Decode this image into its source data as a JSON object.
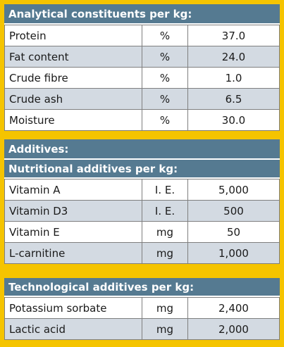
{
  "analytical": {
    "title": "Analytical constituents per kg:",
    "rows": [
      {
        "name": "Protein",
        "unit": "%",
        "value": "37.0"
      },
      {
        "name": "Fat content",
        "unit": "%",
        "value": "24.0"
      },
      {
        "name": "Crude fibre",
        "unit": "%",
        "value": "1.0"
      },
      {
        "name": "Crude ash",
        "unit": "%",
        "value": "6.5"
      },
      {
        "name": "Moisture",
        "unit": "%",
        "value": "30.0"
      }
    ]
  },
  "additives": {
    "title": "Additives:",
    "nutritional_title": "Nutritional additives per kg:",
    "nutritional_rows": [
      {
        "name": "Vitamin A",
        "unit": "I. E.",
        "value": "5,000"
      },
      {
        "name": "Vitamin D3",
        "unit": "I. E.",
        "value": "500"
      },
      {
        "name": "Vitamin E",
        "unit": "mg",
        "value": "50"
      },
      {
        "name": "L-carnitine",
        "unit": "mg",
        "value": "1,000"
      }
    ]
  },
  "technological": {
    "title": "Technological additives per kg:",
    "rows": [
      {
        "name": "Potassium sorbate",
        "unit": "mg",
        "value": "2,400"
      },
      {
        "name": "Lactic acid",
        "unit": "mg",
        "value": "2,000"
      }
    ]
  },
  "colors": {
    "header_bg": "#557a91",
    "row_alt_bg": "#d3dae2",
    "row_bg": "#ffffff",
    "border_frame": "#f5c400"
  }
}
